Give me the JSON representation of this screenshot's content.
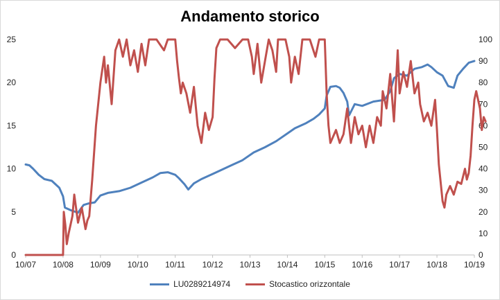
{
  "chart_data": {
    "type": "line",
    "title": "Andamento storico",
    "x_tick_labels": [
      "10/07",
      "10/08",
      "10/09",
      "10/10",
      "10/11",
      "10/12",
      "10/13",
      "10/14",
      "10/15",
      "10/16",
      "10/17",
      "10/18",
      "10/19"
    ],
    "y_left_ticks": [
      "0",
      "5",
      "10",
      "15",
      "20",
      "25"
    ],
    "y_right_ticks": [
      "0",
      "10",
      "20",
      "30",
      "40",
      "50",
      "60",
      "70",
      "80",
      "90",
      "100"
    ],
    "y_left_range": [
      0,
      25
    ],
    "y_right_range": [
      0,
      100
    ],
    "x_range": [
      0,
      12
    ],
    "grid": false,
    "legend_position": "bottom",
    "series": [
      {
        "name": "LU0289214974",
        "axis": "left",
        "color": "#4f81bd",
        "points": [
          [
            0.0,
            10.5
          ],
          [
            0.1,
            10.4
          ],
          [
            0.2,
            10.0
          ],
          [
            0.35,
            9.3
          ],
          [
            0.5,
            8.8
          ],
          [
            0.7,
            8.6
          ],
          [
            0.9,
            7.8
          ],
          [
            1.0,
            6.8
          ],
          [
            1.05,
            5.5
          ],
          [
            1.2,
            5.2
          ],
          [
            1.4,
            4.9
          ],
          [
            1.55,
            5.8
          ],
          [
            1.7,
            6.0
          ],
          [
            1.85,
            6.1
          ],
          [
            2.0,
            6.9
          ],
          [
            2.2,
            7.2
          ],
          [
            2.5,
            7.4
          ],
          [
            2.8,
            7.8
          ],
          [
            3.1,
            8.4
          ],
          [
            3.4,
            9.0
          ],
          [
            3.6,
            9.5
          ],
          [
            3.8,
            9.6
          ],
          [
            4.0,
            9.3
          ],
          [
            4.1,
            8.9
          ],
          [
            4.25,
            8.2
          ],
          [
            4.35,
            7.6
          ],
          [
            4.5,
            8.3
          ],
          [
            4.7,
            8.8
          ],
          [
            5.0,
            9.4
          ],
          [
            5.2,
            9.8
          ],
          [
            5.5,
            10.4
          ],
          [
            5.8,
            11.0
          ],
          [
            6.1,
            11.9
          ],
          [
            6.4,
            12.5
          ],
          [
            6.7,
            13.2
          ],
          [
            7.0,
            14.1
          ],
          [
            7.2,
            14.7
          ],
          [
            7.5,
            15.3
          ],
          [
            7.7,
            15.8
          ],
          [
            7.85,
            16.3
          ],
          [
            8.0,
            17.0
          ],
          [
            8.05,
            18.5
          ],
          [
            8.15,
            19.5
          ],
          [
            8.3,
            19.6
          ],
          [
            8.4,
            19.4
          ],
          [
            8.5,
            18.8
          ],
          [
            8.6,
            17.8
          ],
          [
            8.65,
            16.2
          ],
          [
            8.8,
            17.5
          ],
          [
            9.0,
            17.3
          ],
          [
            9.3,
            17.8
          ],
          [
            9.6,
            18.0
          ],
          [
            9.75,
            19.0
          ],
          [
            9.85,
            20.5
          ],
          [
            10.0,
            21.0
          ],
          [
            10.2,
            20.8
          ],
          [
            10.4,
            21.6
          ],
          [
            10.6,
            21.8
          ],
          [
            10.75,
            22.1
          ],
          [
            10.85,
            21.8
          ],
          [
            11.0,
            21.2
          ],
          [
            11.15,
            20.8
          ],
          [
            11.3,
            19.6
          ],
          [
            11.45,
            19.4
          ],
          [
            11.55,
            20.8
          ],
          [
            11.7,
            21.6
          ],
          [
            11.85,
            22.3
          ],
          [
            12.0,
            22.5
          ]
        ]
      },
      {
        "name": "Stocastico orizzontale",
        "axis": "right",
        "color": "#c0504d",
        "points": [
          [
            0.0,
            0
          ],
          [
            0.95,
            0
          ],
          [
            1.0,
            0
          ],
          [
            1.02,
            20
          ],
          [
            1.06,
            14
          ],
          [
            1.1,
            5
          ],
          [
            1.15,
            10
          ],
          [
            1.25,
            18
          ],
          [
            1.3,
            28
          ],
          [
            1.4,
            15
          ],
          [
            1.5,
            22
          ],
          [
            1.6,
            12
          ],
          [
            1.65,
            16
          ],
          [
            1.7,
            18
          ],
          [
            1.78,
            35
          ],
          [
            1.88,
            60
          ],
          [
            2.0,
            80
          ],
          [
            2.1,
            92
          ],
          [
            2.15,
            80
          ],
          [
            2.2,
            88
          ],
          [
            2.3,
            70
          ],
          [
            2.4,
            95
          ],
          [
            2.5,
            100
          ],
          [
            2.6,
            92
          ],
          [
            2.7,
            100
          ],
          [
            2.8,
            88
          ],
          [
            2.9,
            95
          ],
          [
            3.0,
            85
          ],
          [
            3.1,
            98
          ],
          [
            3.2,
            88
          ],
          [
            3.3,
            100
          ],
          [
            3.5,
            100
          ],
          [
            3.7,
            95
          ],
          [
            3.8,
            100
          ],
          [
            4.0,
            100
          ],
          [
            4.05,
            90
          ],
          [
            4.1,
            82
          ],
          [
            4.15,
            75
          ],
          [
            4.2,
            80
          ],
          [
            4.3,
            75
          ],
          [
            4.4,
            66
          ],
          [
            4.5,
            78
          ],
          [
            4.6,
            60
          ],
          [
            4.7,
            52
          ],
          [
            4.8,
            66
          ],
          [
            4.9,
            58
          ],
          [
            5.0,
            64
          ],
          [
            5.05,
            82
          ],
          [
            5.1,
            96
          ],
          [
            5.2,
            100
          ],
          [
            5.4,
            100
          ],
          [
            5.6,
            96
          ],
          [
            5.8,
            100
          ],
          [
            5.95,
            100
          ],
          [
            6.05,
            92
          ],
          [
            6.1,
            84
          ],
          [
            6.2,
            98
          ],
          [
            6.3,
            80
          ],
          [
            6.4,
            90
          ],
          [
            6.5,
            100
          ],
          [
            6.6,
            95
          ],
          [
            6.7,
            85
          ],
          [
            6.75,
            100
          ],
          [
            6.95,
            100
          ],
          [
            7.05,
            92
          ],
          [
            7.1,
            80
          ],
          [
            7.2,
            92
          ],
          [
            7.3,
            84
          ],
          [
            7.4,
            100
          ],
          [
            7.6,
            100
          ],
          [
            7.75,
            92
          ],
          [
            7.85,
            100
          ],
          [
            7.95,
            100
          ],
          [
            8.0,
            100
          ],
          [
            8.05,
            75
          ],
          [
            8.1,
            60
          ],
          [
            8.15,
            52
          ],
          [
            8.3,
            58
          ],
          [
            8.4,
            52
          ],
          [
            8.5,
            56
          ],
          [
            8.6,
            68
          ],
          [
            8.7,
            52
          ],
          [
            8.8,
            64
          ],
          [
            8.9,
            56
          ],
          [
            9.0,
            60
          ],
          [
            9.1,
            50
          ],
          [
            9.2,
            60
          ],
          [
            9.3,
            52
          ],
          [
            9.4,
            64
          ],
          [
            9.5,
            60
          ],
          [
            9.55,
            76
          ],
          [
            9.65,
            68
          ],
          [
            9.75,
            84
          ],
          [
            9.85,
            62
          ],
          [
            9.95,
            95
          ],
          [
            10.0,
            75
          ],
          [
            10.1,
            85
          ],
          [
            10.2,
            78
          ],
          [
            10.3,
            90
          ],
          [
            10.4,
            75
          ],
          [
            10.5,
            80
          ],
          [
            10.55,
            70
          ],
          [
            10.65,
            62
          ],
          [
            10.75,
            66
          ],
          [
            10.85,
            60
          ],
          [
            10.95,
            72
          ],
          [
            11.0,
            58
          ],
          [
            11.05,
            42
          ],
          [
            11.15,
            25
          ],
          [
            11.2,
            22
          ],
          [
            11.25,
            28
          ],
          [
            11.35,
            32
          ],
          [
            11.45,
            28
          ],
          [
            11.55,
            34
          ],
          [
            11.65,
            33
          ],
          [
            11.75,
            40
          ],
          [
            11.8,
            35
          ],
          [
            11.85,
            38
          ],
          [
            11.9,
            46
          ],
          [
            11.95,
            60
          ],
          [
            12.0,
            72
          ],
          [
            12.05,
            76
          ],
          [
            12.1,
            72
          ],
          [
            12.15,
            68
          ],
          [
            12.2,
            58
          ],
          [
            12.25,
            64
          ],
          [
            12.3,
            62
          ]
        ]
      }
    ]
  }
}
